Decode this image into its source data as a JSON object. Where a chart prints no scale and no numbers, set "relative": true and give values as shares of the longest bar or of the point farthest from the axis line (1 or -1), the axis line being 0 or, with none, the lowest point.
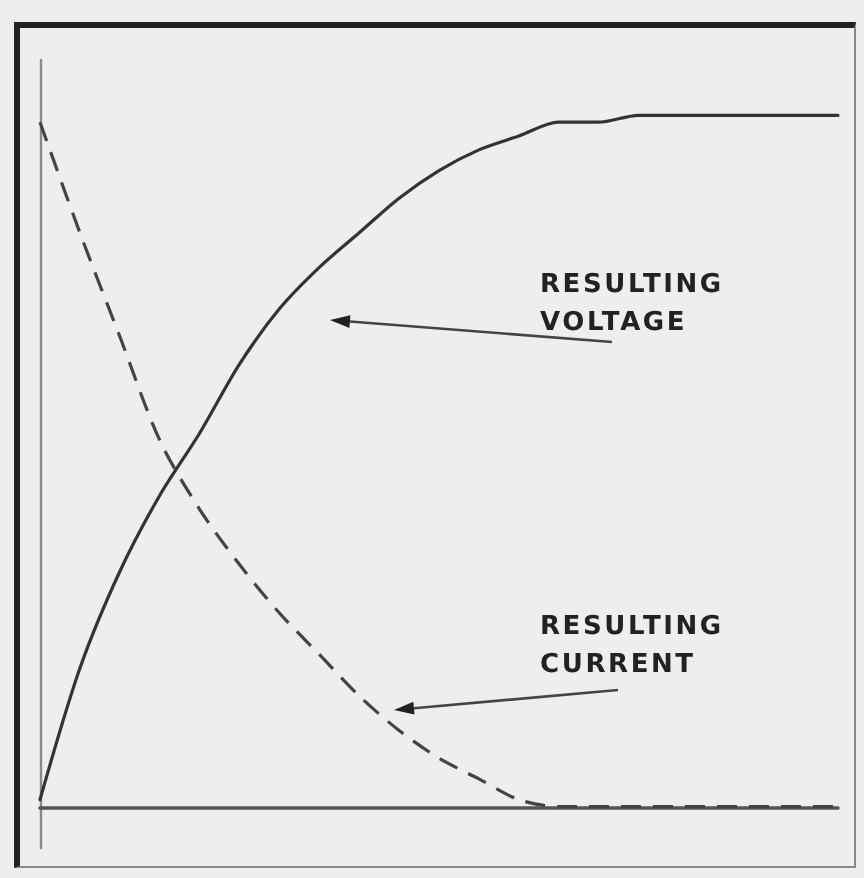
{
  "chart_data": {
    "type": "line",
    "relative": true,
    "marker": "none",
    "categories": [
      null,
      null,
      null,
      null,
      null,
      null,
      null,
      null,
      null,
      null,
      null,
      null,
      null,
      null,
      null,
      null,
      null,
      null,
      null,
      null,
      null
    ],
    "series": [
      {
        "color": "#333333",
        "line_style": "solid",
        "values": [
          0.01,
          0.2,
          0.34,
          0.45,
          0.54,
          0.64,
          0.72,
          0.78,
          0.83,
          0.88,
          0.92,
          0.95,
          0.97,
          0.99,
          0.99,
          1,
          1,
          1,
          1,
          1,
          1
        ]
      },
      {
        "color": "#444444",
        "line_style": "dashed",
        "values": [
          0.99,
          0.83,
          0.68,
          0.53,
          0.43,
          0.35,
          0.28,
          0.22,
          0.16,
          0.11,
          0.07,
          0.04,
          0.01,
          0,
          0,
          0,
          0,
          0,
          0,
          0,
          0
        ]
      }
    ],
    "annotations": [
      "RESULTING VOLTAGE",
      "RESULTING CURRENT"
    ]
  }
}
